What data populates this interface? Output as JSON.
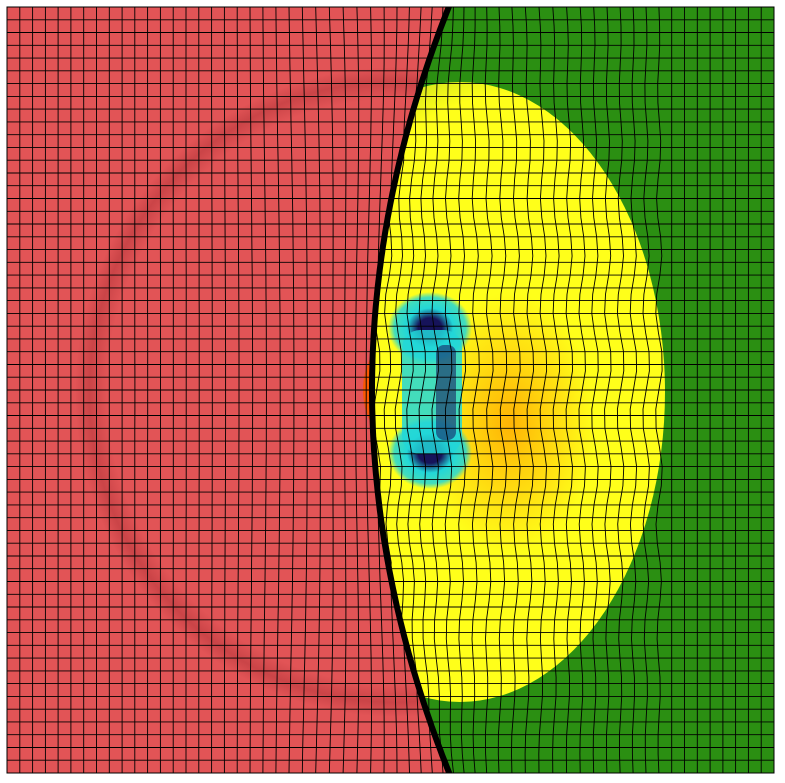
{
  "figure": {
    "kind": "simulation-field-with-deforming-mesh",
    "mesh": {
      "columns": 60,
      "rows": 60
    },
    "colors": {
      "left_region": "#e25456",
      "left_region_dark": "#b7373b",
      "interface_line": "#000000",
      "right_background": "#2b8f12",
      "bubble_edge": "#cfe21c",
      "bubble_yellow": "#ffff1a",
      "bubble_core": "#ffb405",
      "vortex_cyan": "#22d7d8",
      "vortex_core": "#16135a",
      "jet_orange": "#ff5a00",
      "grid_line": "#000000"
    }
  }
}
